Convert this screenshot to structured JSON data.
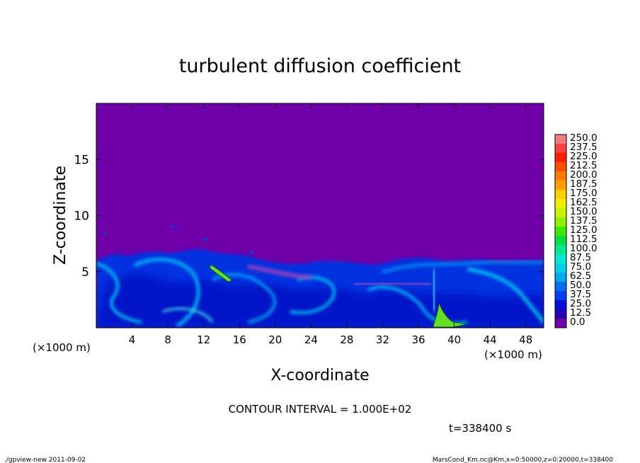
{
  "chart_data": {
    "type": "heatmap",
    "title": "turbulent diffusion coefficient",
    "xlabel": "X-coordinate",
    "ylabel": "Z-coordinate",
    "x_unit_left": "(×1000 m)",
    "x_unit_right": "(×1000 m)",
    "xlim": [
      0,
      50
    ],
    "ylim": [
      0,
      20
    ],
    "x_ticks": [
      4,
      8,
      12,
      16,
      20,
      24,
      28,
      32,
      36,
      40,
      44,
      48
    ],
    "y_ticks": [
      5,
      10,
      15
    ],
    "colorbar": {
      "levels": [
        "250.0",
        "237.5",
        "225.0",
        "212.5",
        "200.0",
        "187.5",
        "175.0",
        "162.5",
        "150.0",
        "137.5",
        "125.0",
        "112.5",
        "100.0",
        "87.5",
        "75.0",
        "62.5",
        "50.0",
        "37.5",
        "25.0",
        "12.5",
        "0.0"
      ],
      "colors": [
        "#f08080",
        "#ff4040",
        "#ff2000",
        "#ff5000",
        "#ff7a00",
        "#ffa000",
        "#ffd000",
        "#f0f000",
        "#c8f000",
        "#90f000",
        "#40e800",
        "#00e040",
        "#00e890",
        "#00e8d0",
        "#00d0f0",
        "#00a8f0",
        "#0070f0",
        "#0040f0",
        "#0010d8",
        "#2000b0",
        "#7000a8"
      ]
    },
    "background_color": "#7000a8",
    "contour_interval": "CONTOUR INTERVAL = 1.000E+02",
    "time_label": "t=338400 s",
    "footer_left": "./gpview-new   2011-09-02",
    "footer_right": "MarsCond_Km.nc@Km,x=0:50000,z=0:20000,t=338400"
  }
}
